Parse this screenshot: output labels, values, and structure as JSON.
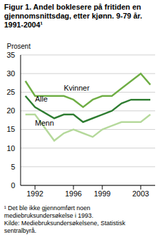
{
  "chart_data": {
    "type": "line",
    "title": "Figur 1. Andel boklesere på fritiden en gjennomsnittsdag, etter kjønn. 9-79 år. 1991-2004¹",
    "y_label": "Prosent",
    "footnote": "¹ Det ble ikke gjennomført noen mediebruksundersøkelse i 1993.",
    "source": "Kilde: Mediebruksundersøkelsene, Statistisk sentralbyrå.",
    "x": [
      1991,
      1992,
      1994,
      1995,
      1996,
      1997,
      1998,
      1999,
      2000,
      2001,
      2002,
      2003,
      2004
    ],
    "series": [
      {
        "name": "Kvinner",
        "color": "#6fae45",
        "values": [
          28,
          24,
          24,
          24,
          23,
          21,
          23,
          24,
          24,
          26,
          28,
          30,
          27
        ]
      },
      {
        "name": "Alle",
        "color": "#2f7d32",
        "values": [
          24,
          21,
          18,
          19,
          19,
          17,
          18,
          19,
          20,
          22,
          23,
          23,
          23
        ]
      },
      {
        "name": "Menn",
        "color": "#b5d99b",
        "values": [
          19,
          19,
          12,
          14,
          15,
          14,
          13,
          15,
          16,
          17,
          17,
          17,
          19
        ]
      }
    ],
    "xlim": [
      1990.5,
      2004.5
    ],
    "xticks": [
      1992,
      1996,
      1999,
      2003
    ],
    "ylim": [
      0,
      35
    ],
    "yticks": [
      0,
      5,
      10,
      15,
      20,
      25,
      30,
      35
    ],
    "grid": true
  }
}
